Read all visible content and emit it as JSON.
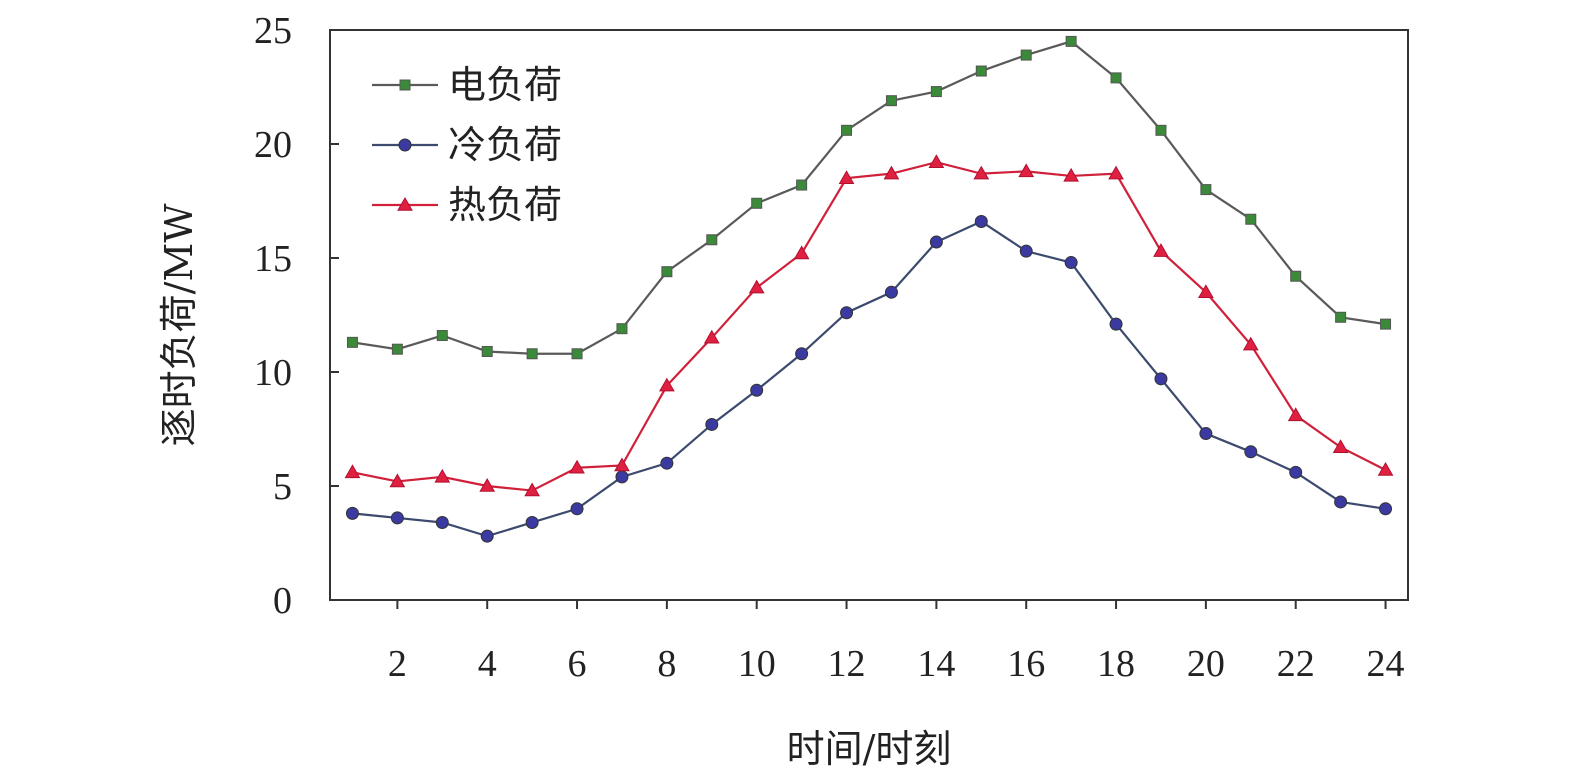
{
  "chart_data": {
    "type": "line",
    "title": "",
    "xlabel": "时间/时刻",
    "ylabel": "逐时负荷/MW",
    "xlim": [
      0.5,
      24.5
    ],
    "ylim": [
      0,
      25
    ],
    "x_ticks": [
      2,
      4,
      6,
      8,
      10,
      12,
      14,
      16,
      18,
      20,
      22,
      24
    ],
    "y_ticks": [
      0,
      5,
      10,
      15,
      20,
      25
    ],
    "grid": false,
    "legend_position": "top-left",
    "x": [
      1,
      2,
      3,
      4,
      5,
      6,
      7,
      8,
      9,
      10,
      11,
      12,
      13,
      14,
      15,
      16,
      17,
      18,
      19,
      20,
      21,
      22,
      23,
      24
    ],
    "series": [
      {
        "name": "电负荷",
        "line_color": "#5a5a5a",
        "marker_color": "#3a8a3a",
        "marker": "square",
        "values": [
          11.3,
          11.0,
          11.6,
          10.9,
          10.8,
          10.8,
          11.9,
          14.4,
          15.8,
          17.4,
          18.2,
          20.6,
          21.9,
          22.3,
          23.2,
          23.9,
          24.5,
          22.9,
          20.6,
          18.0,
          16.7,
          14.2,
          12.4,
          12.1
        ]
      },
      {
        "name": "冷负荷",
        "line_color": "#3c4a6e",
        "marker_color": "#3a3aa0",
        "marker": "circle",
        "values": [
          3.8,
          3.6,
          3.4,
          2.8,
          3.4,
          4.0,
          5.4,
          6.0,
          7.7,
          9.2,
          10.8,
          12.6,
          13.5,
          15.7,
          16.6,
          15.3,
          14.8,
          12.1,
          9.7,
          7.3,
          6.5,
          5.6,
          4.3,
          4.0
        ]
      },
      {
        "name": "热负荷",
        "line_color": "#d0203a",
        "marker_color": "#e02040",
        "marker": "triangle",
        "values": [
          5.6,
          5.2,
          5.4,
          5.0,
          4.8,
          5.8,
          5.9,
          9.4,
          11.5,
          13.7,
          15.2,
          18.5,
          18.7,
          19.2,
          18.7,
          18.8,
          18.6,
          18.7,
          15.3,
          13.5,
          11.2,
          8.1,
          6.7,
          5.7
        ]
      }
    ]
  }
}
